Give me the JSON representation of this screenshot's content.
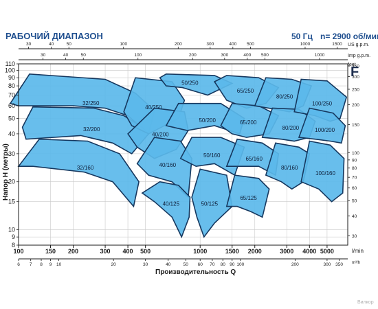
{
  "header": {
    "title": "РАБОЧИЙ ДИАПАЗОН",
    "frequency": "50 Гц",
    "speed": "n= 2900 об/мин",
    "family_letter": "F",
    "watermark": "Вилкор"
  },
  "chart_data": {
    "type": "area",
    "title": "РАБОЧИЙ ДИАПАЗОН",
    "xlabel": "Производительность Q",
    "ylabel": "Напор Н (метры)",
    "xscale": "log",
    "yscale": "log",
    "xlim": [
      100,
      6500
    ],
    "ylim": [
      8,
      110
    ],
    "x_unit_bottom": "l/min",
    "x_unit_lower": "m³/h",
    "x_unit_top_us": "US g.p.m.",
    "x_unit_top_imp": "Imp g.p.m.",
    "y_unit_right": "feet",
    "x_ticks_lmin": [
      100,
      150,
      200,
      300,
      400,
      500,
      1000,
      1500,
      2000,
      3000,
      4000,
      5000
    ],
    "x_ticks_m3h": [
      6,
      7,
      8,
      9,
      10,
      20,
      30,
      40,
      50,
      60,
      70,
      80,
      90,
      100,
      200,
      300,
      350
    ],
    "x_ticks_us": [
      30,
      40,
      50,
      100,
      200,
      300,
      400,
      500,
      1000,
      1500
    ],
    "x_ticks_imp": [
      30,
      40,
      50,
      100,
      200,
      300,
      400,
      500,
      1000,
      1500
    ],
    "y_ticks_m": [
      8,
      9,
      10,
      15,
      20,
      30,
      40,
      50,
      60,
      70,
      80,
      90,
      100,
      110
    ],
    "y_ticks_ft": [
      30,
      40,
      50,
      60,
      70,
      80,
      90,
      100,
      150,
      200,
      250,
      300,
      350
    ],
    "zones": [
      {
        "name": "32/250",
        "poly": [
          [
            90,
            62
          ],
          [
            115,
            95
          ],
          [
            300,
            88
          ],
          [
            440,
            72
          ],
          [
            560,
            56
          ],
          [
            520,
            40
          ],
          [
            400,
            52
          ],
          [
            300,
            58
          ],
          [
            200,
            60
          ],
          [
            100,
            60
          ]
        ]
      },
      {
        "name": "32/200",
        "poly": [
          [
            105,
            44
          ],
          [
            120,
            59
          ],
          [
            260,
            58
          ],
          [
            380,
            52
          ],
          [
            480,
            44
          ],
          [
            520,
            40
          ],
          [
            420,
            30
          ],
          [
            330,
            35
          ],
          [
            220,
            39
          ],
          [
            110,
            37
          ]
        ]
      },
      {
        "name": "32/160",
        "poly": [
          [
            100,
            25
          ],
          [
            130,
            37
          ],
          [
            240,
            36
          ],
          [
            360,
            30
          ],
          [
            460,
            20
          ],
          [
            430,
            14
          ],
          [
            330,
            20
          ],
          [
            230,
            23
          ],
          [
            120,
            25
          ]
        ]
      },
      {
        "name": "40/250",
        "poly": [
          [
            380,
            55
          ],
          [
            440,
            90
          ],
          [
            700,
            85
          ],
          [
            820,
            65
          ],
          [
            760,
            50
          ],
          [
            520,
            40
          ],
          [
            420,
            45
          ]
        ]
      },
      {
        "name": "40/200",
        "poly": [
          [
            400,
            40
          ],
          [
            560,
            58
          ],
          [
            820,
            55
          ],
          [
            860,
            42
          ],
          [
            740,
            32
          ],
          [
            560,
            28
          ],
          [
            450,
            33
          ]
        ]
      },
      {
        "name": "40/160",
        "poly": [
          [
            450,
            26
          ],
          [
            560,
            38
          ],
          [
            780,
            36
          ],
          [
            900,
            28
          ],
          [
            860,
            16
          ],
          [
            700,
            20
          ],
          [
            520,
            22
          ]
        ]
      },
      {
        "name": "40/125",
        "poly": [
          [
            480,
            17
          ],
          [
            600,
            20
          ],
          [
            760,
            19
          ],
          [
            880,
            16
          ],
          [
            870,
            12
          ],
          [
            790,
            9
          ],
          [
            700,
            12
          ],
          [
            560,
            15
          ]
        ]
      },
      {
        "name": "50/250",
        "poly": [
          [
            600,
            90
          ],
          [
            650,
            95
          ],
          [
            1200,
            93
          ],
          [
            1500,
            83
          ],
          [
            1100,
            70
          ],
          [
            800,
            78
          ],
          [
            650,
            80
          ]
        ]
      },
      {
        "name": "50/200",
        "poly": [
          [
            650,
            45
          ],
          [
            760,
            62
          ],
          [
            1300,
            62
          ],
          [
            1750,
            50
          ],
          [
            1650,
            40
          ],
          [
            1200,
            45
          ],
          [
            850,
            42
          ]
        ]
      },
      {
        "name": "50/160",
        "poly": [
          [
            780,
            28
          ],
          [
            900,
            38
          ],
          [
            1300,
            38
          ],
          [
            1750,
            33
          ],
          [
            1550,
            22
          ],
          [
            1200,
            26
          ],
          [
            950,
            25
          ]
        ]
      },
      {
        "name": "50/125",
        "poly": [
          [
            900,
            16
          ],
          [
            1000,
            24
          ],
          [
            1400,
            22
          ],
          [
            1500,
            14
          ],
          [
            1200,
            11
          ],
          [
            1050,
            9
          ],
          [
            960,
            12
          ]
        ]
      },
      {
        "name": "65/250",
        "poly": [
          [
            1200,
            85
          ],
          [
            1400,
            93
          ],
          [
            2100,
            90
          ],
          [
            2700,
            78
          ],
          [
            2300,
            62
          ],
          [
            1800,
            58
          ],
          [
            1400,
            65
          ]
        ]
      },
      {
        "name": "65/200",
        "poly": [
          [
            1300,
            45
          ],
          [
            1500,
            62
          ],
          [
            2100,
            60
          ],
          [
            2700,
            52
          ],
          [
            2400,
            40
          ],
          [
            1800,
            38
          ],
          [
            1500,
            40
          ]
        ]
      },
      {
        "name": "65/160",
        "poly": [
          [
            1400,
            25
          ],
          [
            1600,
            37
          ],
          [
            2200,
            35
          ],
          [
            2700,
            30
          ],
          [
            2600,
            22
          ],
          [
            2100,
            25
          ],
          [
            1650,
            25
          ]
        ]
      },
      {
        "name": "65/125",
        "poly": [
          [
            1400,
            14
          ],
          [
            1550,
            22
          ],
          [
            2100,
            21
          ],
          [
            2400,
            18
          ],
          [
            2200,
            12
          ],
          [
            1900,
            13
          ],
          [
            1600,
            14
          ]
        ]
      },
      {
        "name": "80/250",
        "poly": [
          [
            2000,
            60
          ],
          [
            2300,
            90
          ],
          [
            3200,
            88
          ],
          [
            4100,
            80
          ],
          [
            3700,
            60
          ],
          [
            3100,
            55
          ],
          [
            2600,
            57
          ]
        ]
      },
      {
        "name": "80/200",
        "poly": [
          [
            2200,
            38
          ],
          [
            2500,
            58
          ],
          [
            3500,
            57
          ],
          [
            4300,
            48
          ],
          [
            4000,
            38
          ],
          [
            3300,
            36
          ],
          [
            2800,
            37
          ]
        ]
      },
      {
        "name": "80/160",
        "poly": [
          [
            2300,
            22
          ],
          [
            2600,
            35
          ],
          [
            3500,
            33
          ],
          [
            4000,
            30
          ],
          [
            3700,
            20
          ],
          [
            3200,
            18
          ],
          [
            2800,
            20
          ]
        ]
      },
      {
        "name": "100/250",
        "poly": [
          [
            3300,
            55
          ],
          [
            3600,
            88
          ],
          [
            5000,
            86
          ],
          [
            6400,
            68
          ],
          [
            5900,
            50
          ],
          [
            5200,
            48
          ],
          [
            4300,
            52
          ]
        ]
      },
      {
        "name": "100/200",
        "poly": [
          [
            3500,
            38
          ],
          [
            4000,
            58
          ],
          [
            5400,
            54
          ],
          [
            6300,
            45
          ],
          [
            6000,
            35
          ],
          [
            5200,
            36
          ],
          [
            4300,
            37
          ]
        ]
      },
      {
        "name": "100/160",
        "poly": [
          [
            3600,
            20
          ],
          [
            4000,
            36
          ],
          [
            5200,
            34
          ],
          [
            6200,
            28
          ],
          [
            6100,
            17
          ],
          [
            5300,
            15
          ],
          [
            4500,
            18
          ]
        ]
      }
    ]
  }
}
